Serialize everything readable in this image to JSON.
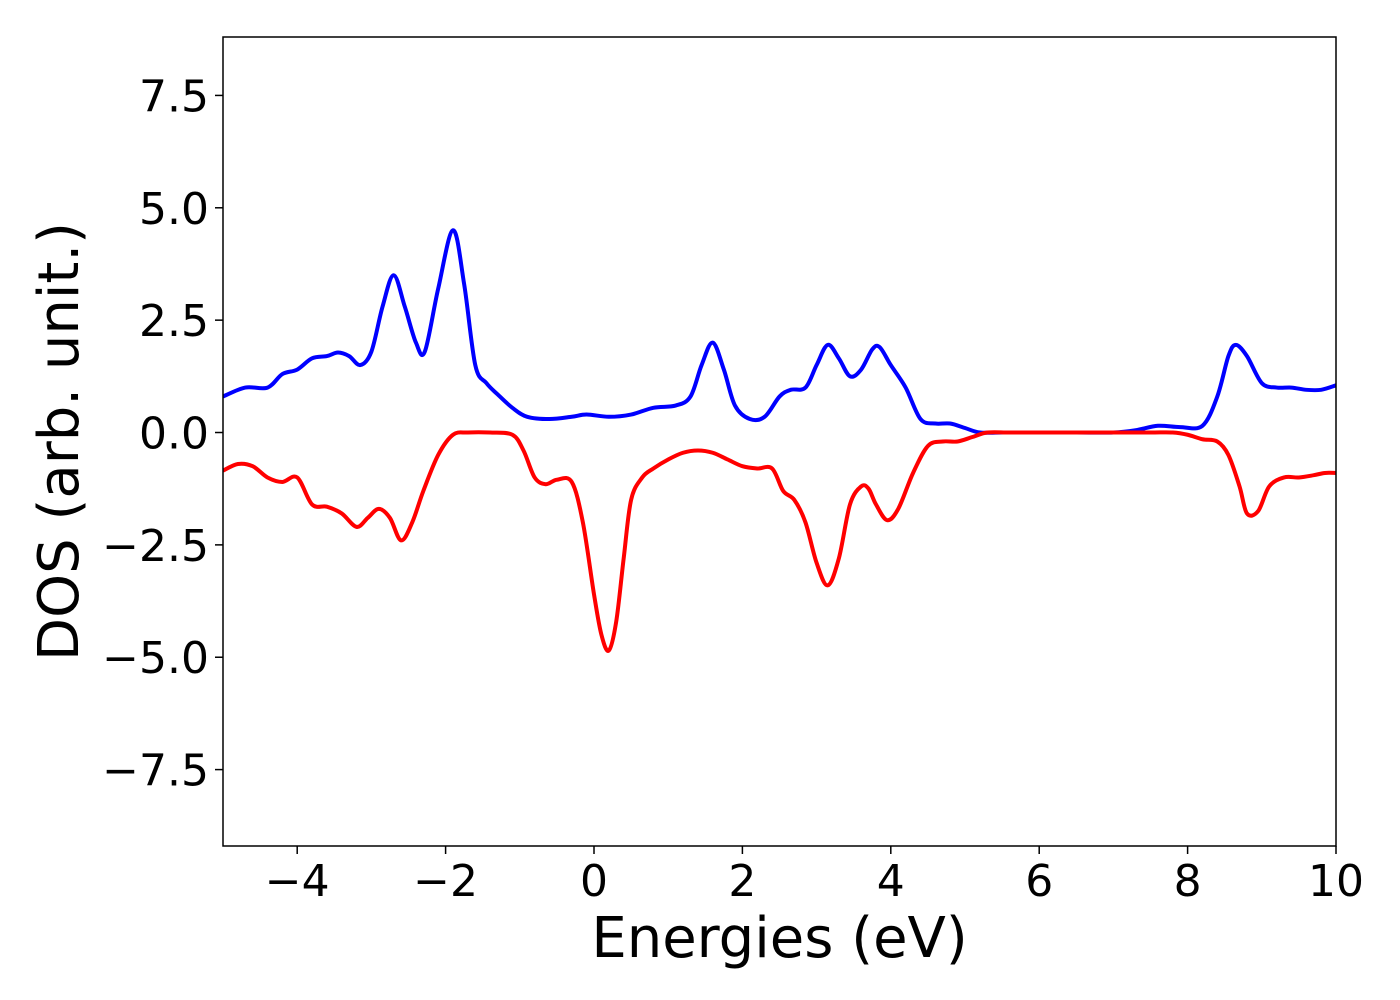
{
  "chart_data": {
    "type": "line",
    "title": "",
    "xlabel": "Energies (eV)",
    "ylabel": "DOS (arb. unit.)",
    "xlim": [
      -5,
      10
    ],
    "ylim": [
      -9.2,
      8.8
    ],
    "grid": false,
    "legend": "none",
    "xticks": [
      {
        "value": -4,
        "label": "−4"
      },
      {
        "value": -2,
        "label": "−2"
      },
      {
        "value": 0,
        "label": "0"
      },
      {
        "value": 2,
        "label": "2"
      },
      {
        "value": 4,
        "label": "4"
      },
      {
        "value": 6,
        "label": "6"
      },
      {
        "value": 8,
        "label": "8"
      },
      {
        "value": 10,
        "label": "10"
      }
    ],
    "yticks": [
      {
        "value": -7.5,
        "label": "−7.5"
      },
      {
        "value": -5.0,
        "label": "−5.0"
      },
      {
        "value": -2.5,
        "label": "−2.5"
      },
      {
        "value": 0.0,
        "label": "0.0"
      },
      {
        "value": 2.5,
        "label": "2.5"
      },
      {
        "value": 5.0,
        "label": "5.0"
      },
      {
        "value": 7.5,
        "label": "7.5"
      }
    ],
    "series": [
      {
        "color": "#0000ff",
        "x": [
          -5.0,
          -4.7,
          -4.4,
          -4.2,
          -4.0,
          -3.8,
          -3.6,
          -3.45,
          -3.3,
          -3.15,
          -3.0,
          -2.85,
          -2.7,
          -2.55,
          -2.4,
          -2.28,
          -2.1,
          -1.9,
          -1.75,
          -1.6,
          -1.45,
          -1.3,
          -1.1,
          -0.9,
          -0.6,
          -0.3,
          -0.1,
          0.2,
          0.5,
          0.8,
          1.1,
          1.3,
          1.45,
          1.6,
          1.75,
          1.9,
          2.1,
          2.3,
          2.5,
          2.65,
          2.85,
          3.0,
          3.15,
          3.3,
          3.45,
          3.6,
          3.75,
          3.85,
          4.0,
          4.2,
          4.4,
          4.6,
          4.8,
          5.0,
          5.2,
          5.5,
          6.0,
          6.5,
          7.0,
          7.3,
          7.6,
          7.9,
          8.2,
          8.4,
          8.55,
          8.65,
          8.8,
          9.0,
          9.2,
          9.4,
          9.6,
          9.8,
          10.0
        ],
        "y": [
          0.8,
          1.0,
          1.0,
          1.3,
          1.4,
          1.65,
          1.7,
          1.78,
          1.7,
          1.5,
          1.8,
          2.8,
          3.5,
          2.8,
          2.0,
          1.8,
          3.2,
          4.5,
          3.3,
          1.5,
          1.1,
          0.85,
          0.55,
          0.35,
          0.3,
          0.35,
          0.4,
          0.35,
          0.4,
          0.55,
          0.6,
          0.8,
          1.5,
          2.0,
          1.4,
          0.6,
          0.3,
          0.35,
          0.8,
          0.95,
          1.0,
          1.5,
          1.95,
          1.65,
          1.25,
          1.4,
          1.85,
          1.9,
          1.5,
          1.0,
          0.3,
          0.2,
          0.2,
          0.1,
          0.0,
          0.0,
          0.0,
          0.0,
          0.0,
          0.05,
          0.15,
          0.12,
          0.15,
          0.8,
          1.7,
          1.95,
          1.7,
          1.1,
          1.0,
          1.0,
          0.95,
          0.95,
          1.05
        ]
      },
      {
        "color": "#ff0000",
        "x": [
          -5.0,
          -4.8,
          -4.6,
          -4.4,
          -4.2,
          -4.0,
          -3.8,
          -3.6,
          -3.4,
          -3.2,
          -3.05,
          -2.9,
          -2.75,
          -2.6,
          -2.45,
          -2.3,
          -2.1,
          -1.9,
          -1.7,
          -1.4,
          -1.1,
          -0.95,
          -0.8,
          -0.65,
          -0.5,
          -0.3,
          -0.15,
          0.0,
          0.1,
          0.2,
          0.3,
          0.4,
          0.5,
          0.65,
          0.8,
          1.0,
          1.2,
          1.4,
          1.6,
          1.8,
          2.0,
          2.2,
          2.4,
          2.55,
          2.7,
          2.85,
          3.0,
          3.15,
          3.3,
          3.45,
          3.6,
          3.7,
          3.8,
          3.95,
          4.1,
          4.3,
          4.5,
          4.7,
          4.9,
          5.1,
          5.3,
          5.6,
          6.0,
          6.5,
          7.0,
          7.5,
          7.8,
          8.0,
          8.2,
          8.4,
          8.55,
          8.7,
          8.8,
          8.95,
          9.1,
          9.3,
          9.5,
          9.7,
          9.85,
          10.0
        ],
        "y": [
          -0.85,
          -0.7,
          -0.75,
          -1.0,
          -1.1,
          -1.0,
          -1.6,
          -1.65,
          -1.8,
          -2.1,
          -1.9,
          -1.7,
          -1.9,
          -2.4,
          -2.0,
          -1.3,
          -0.5,
          -0.05,
          0.0,
          0.0,
          -0.05,
          -0.4,
          -1.0,
          -1.15,
          -1.05,
          -1.1,
          -2.0,
          -3.6,
          -4.5,
          -4.85,
          -4.2,
          -2.8,
          -1.5,
          -1.0,
          -0.8,
          -0.6,
          -0.45,
          -0.4,
          -0.45,
          -0.6,
          -0.75,
          -0.8,
          -0.8,
          -1.3,
          -1.5,
          -2.0,
          -2.9,
          -3.4,
          -2.8,
          -1.6,
          -1.2,
          -1.25,
          -1.6,
          -1.95,
          -1.7,
          -0.9,
          -0.3,
          -0.2,
          -0.2,
          -0.1,
          0.0,
          0.0,
          0.0,
          0.0,
          0.0,
          0.0,
          0.0,
          -0.05,
          -0.15,
          -0.2,
          -0.5,
          -1.2,
          -1.8,
          -1.75,
          -1.2,
          -1.0,
          -1.0,
          -0.95,
          -0.9,
          -0.9
        ]
      }
    ]
  }
}
